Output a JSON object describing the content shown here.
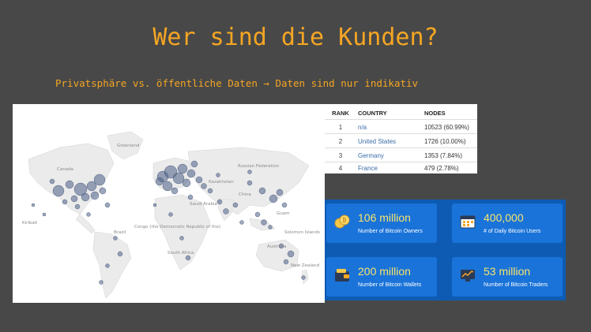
{
  "title": "Wer sind die Kunden?",
  "subtitle": "Privatsphäre vs. öffentliche Daten → Daten sind nur indikativ",
  "map": {
    "labels": [
      "Greenland",
      "Canada",
      "Russian Federation",
      "Kazakhstan",
      "China",
      "Brazil",
      "Congo (the Democratic Republic of the)",
      "South Africa",
      "Australia",
      "New Zealand",
      "Kiribati",
      "Guam",
      "Solomon Islands",
      "Saudi Arabia"
    ],
    "dot_color": "#4a5f86"
  },
  "nodes_table": {
    "headers": {
      "rank": "RANK",
      "country": "COUNTRY",
      "nodes": "NODES"
    },
    "rows": [
      {
        "rank": "1",
        "country": "n/a",
        "nodes": "10523 (60.99%)"
      },
      {
        "rank": "2",
        "country": "United States",
        "nodes": "1726 (10.00%)"
      },
      {
        "rank": "3",
        "country": "Germany",
        "nodes": "1353 (7.84%)"
      },
      {
        "rank": "4",
        "country": "France",
        "nodes": "479 (2.78%)"
      }
    ]
  },
  "stats": [
    {
      "value": "106 million",
      "label": "Number of Bitcoin Owners",
      "icon": "coins-icon"
    },
    {
      "value": "400,000",
      "label": "# of Daily Bitcoin Users",
      "icon": "calendar-icon"
    },
    {
      "value": "200 million",
      "label": "Number of Bitcoin Wallets",
      "icon": "wallet-icon"
    },
    {
      "value": "53 million",
      "label": "Number of Bitcoin Traders",
      "icon": "trader-icon"
    }
  ],
  "colors": {
    "accent": "#f5a623",
    "stat_value": "#f7e46b",
    "panel": "#0d5bb3",
    "card": "#1a73d9"
  }
}
